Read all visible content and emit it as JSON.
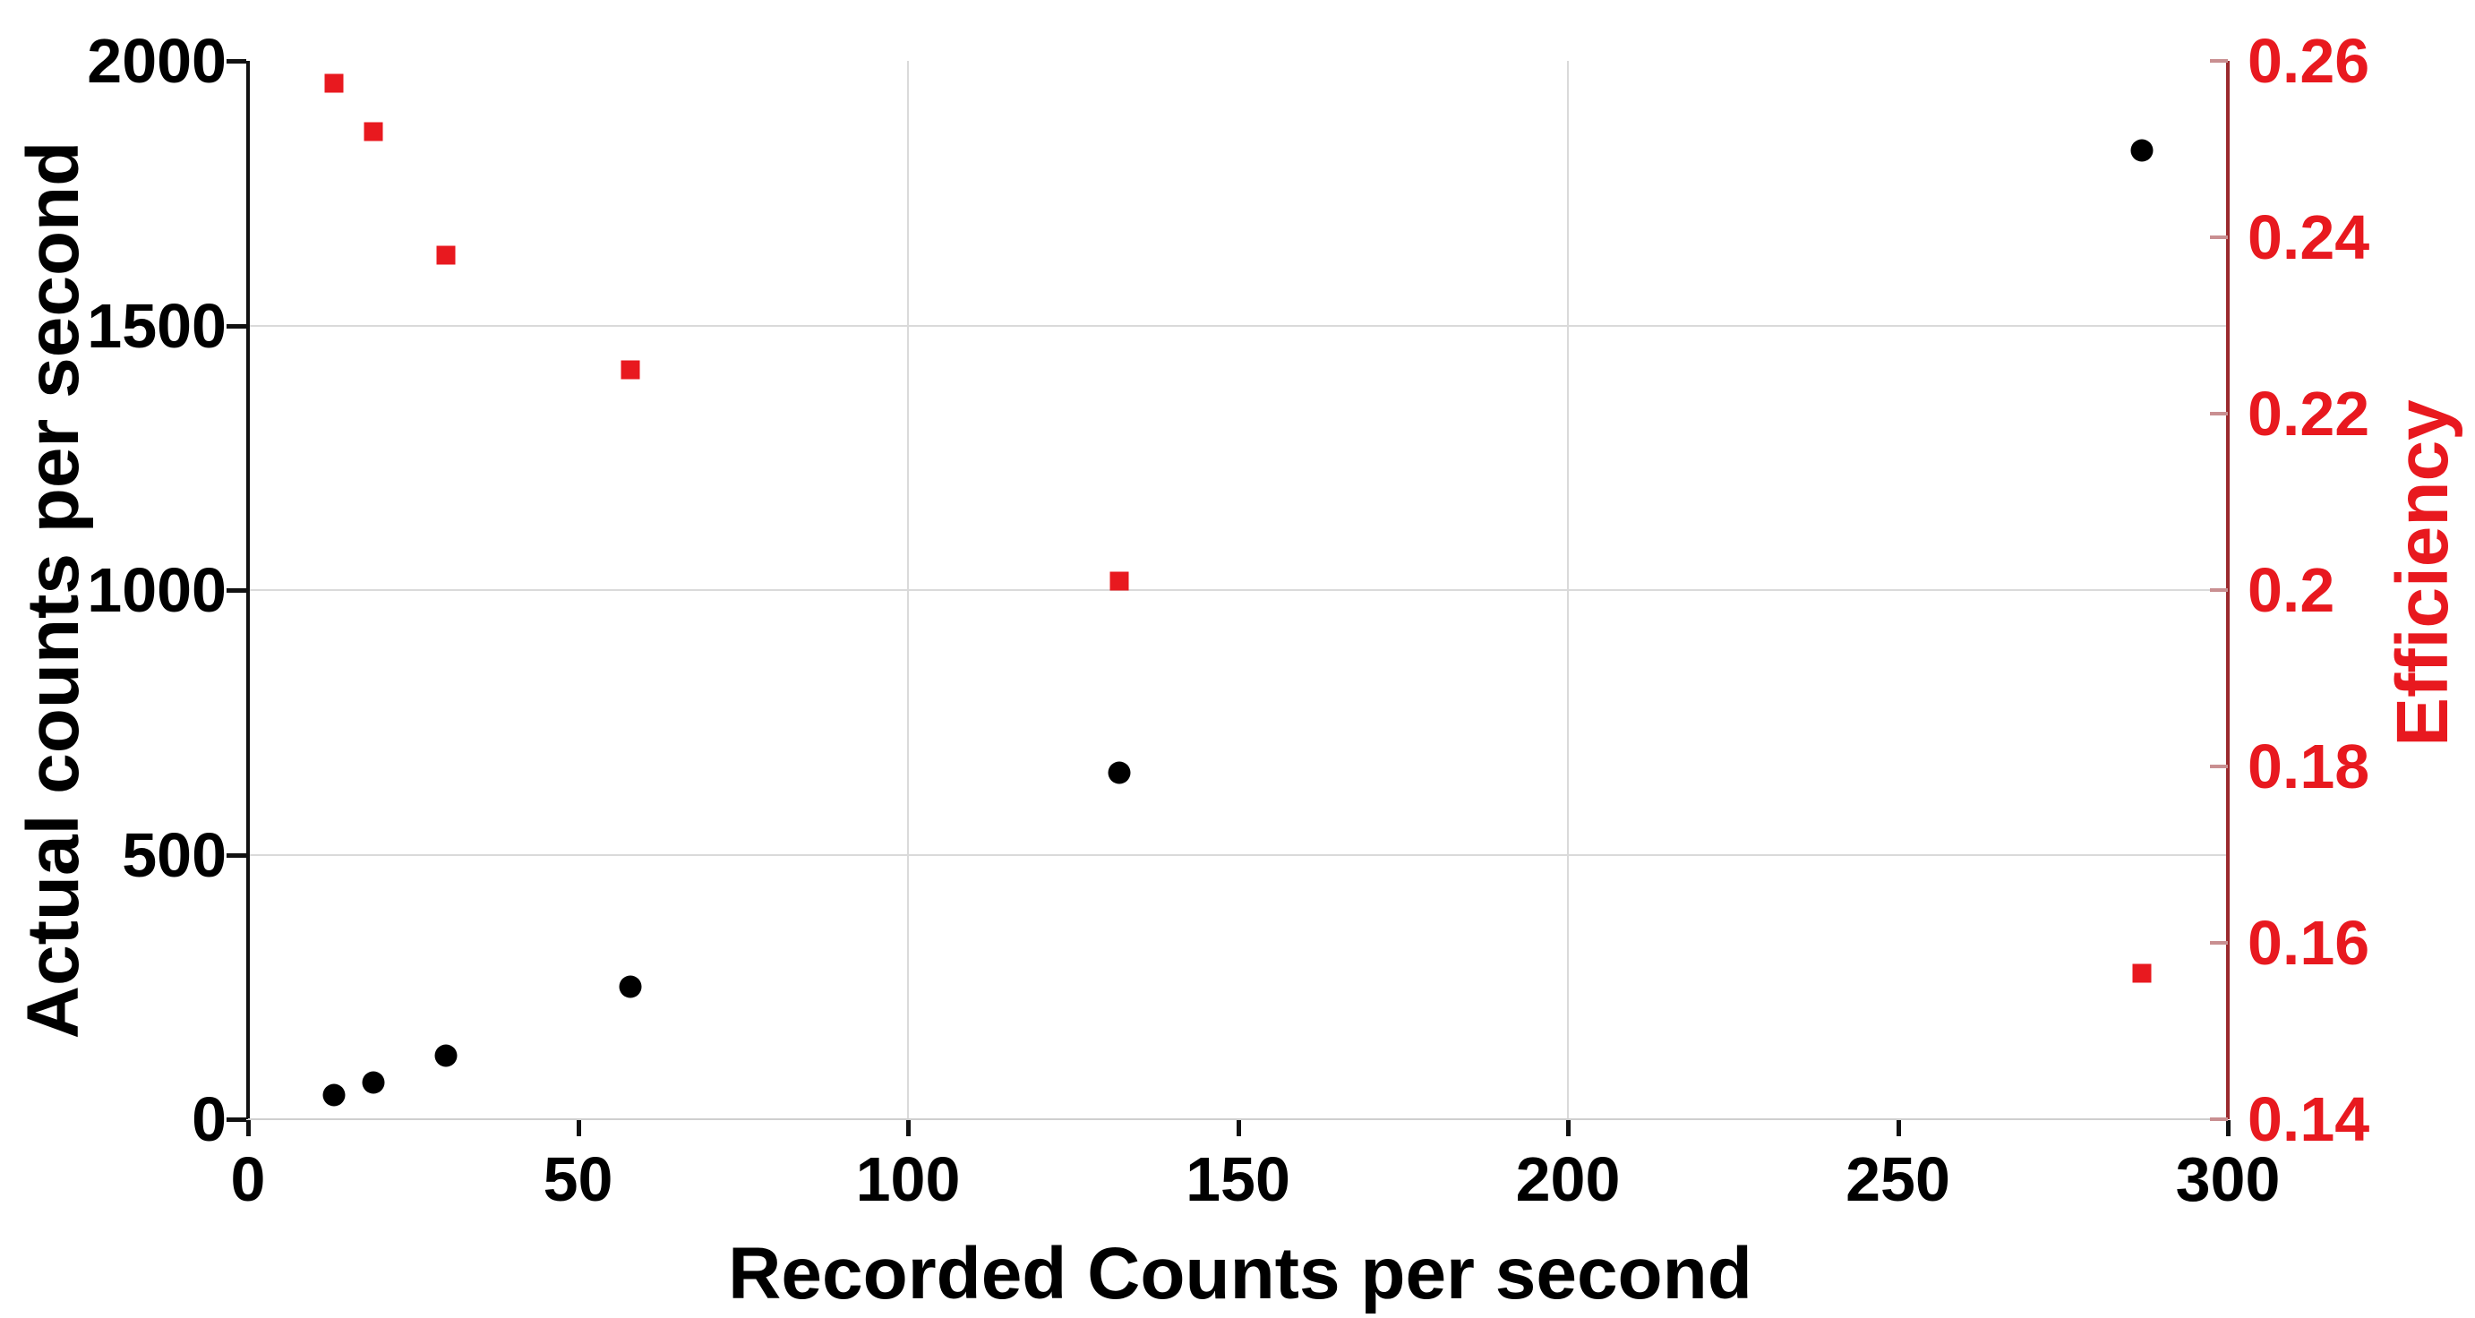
{
  "figure": {
    "background": "#ffffff"
  },
  "axis_titles": {
    "x": "Recorded Counts per second",
    "y_left": "Actual counts per second",
    "y_right": "Efficiency"
  },
  "colors": {
    "black_series": "#000000",
    "red_series": "#e8191f",
    "red_labels": "#e8191f",
    "right_spine": "#9b2a2e",
    "right_tick": "#c98f91",
    "gridline": "#dadada",
    "bottom_spine": "#cfcfcf",
    "left_spine": "#111111"
  },
  "chart_data": {
    "type": "scatter",
    "title": "",
    "xlabel": "Recorded Counts per second",
    "ylabel_left": "Actual counts per second",
    "ylabel_right": "Efficiency",
    "xlim": [
      0,
      300
    ],
    "ylim_left": [
      0,
      2000
    ],
    "ylim_right": [
      0.14,
      0.26
    ],
    "xticks": {
      "values": [
        0,
        50,
        100,
        150,
        200,
        250,
        300
      ],
      "labels": [
        "0",
        "50",
        "100",
        "150",
        "200",
        "250",
        "300"
      ]
    },
    "yticks_left": {
      "values": [
        0,
        500,
        1000,
        1500,
        2000
      ],
      "labels": [
        "0",
        "500",
        "1000",
        "1500",
        "2000"
      ]
    },
    "yticks_right": {
      "values": [
        0.14,
        0.16,
        0.18,
        0.2,
        0.22,
        0.24,
        0.26
      ],
      "labels": [
        "0.14",
        "0.16",
        "0.18",
        "0.2",
        "0.22",
        "0.24",
        "0.26"
      ]
    },
    "gridlines": {
      "x": [
        100,
        200
      ],
      "y_left": [
        500,
        1000,
        1500
      ]
    },
    "grid_on": true,
    "legend": null,
    "x": [
      13,
      19,
      30,
      58,
      132,
      287
    ],
    "series": [
      {
        "name": "Actual counts per second",
        "axis": "left",
        "marker": "circle",
        "color": "#000000",
        "values": [
          45,
          70,
          120,
          250,
          655,
          1830
        ]
      },
      {
        "name": "Efficiency",
        "axis": "right",
        "marker": "square",
        "color": "#e8191f",
        "values": [
          0.2575,
          0.252,
          0.238,
          0.225,
          0.201,
          0.1565
        ]
      }
    ]
  }
}
